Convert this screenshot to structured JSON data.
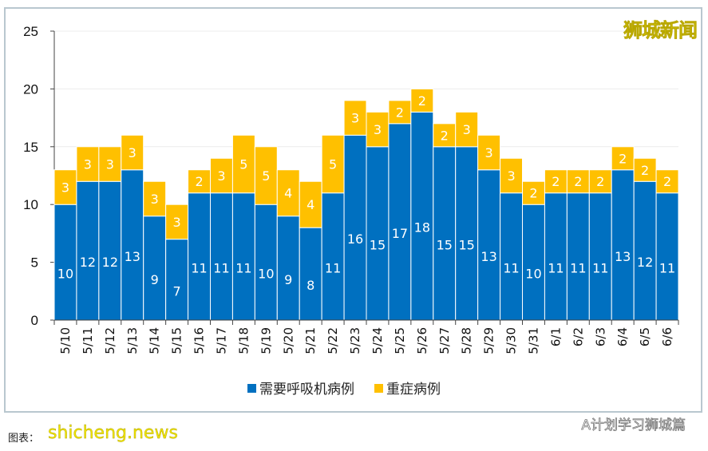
{
  "watermark_top": "狮城新闻",
  "footer_source": "图表：",
  "watermark_site": "shicheng.news",
  "watermark_wechat": "A计划学习狮城篇",
  "chart_data": {
    "type": "bar",
    "stacked": true,
    "categories": [
      "5/10",
      "5/11",
      "5/12",
      "5/13",
      "5/14",
      "5/15",
      "5/16",
      "5/17",
      "5/18",
      "5/19",
      "5/20",
      "5/21",
      "5/22",
      "5/23",
      "5/24",
      "5/25",
      "5/26",
      "5/27",
      "5/28",
      "5/29",
      "5/30",
      "5/31",
      "6/1",
      "6/2",
      "6/3",
      "6/4",
      "6/5",
      "6/6"
    ],
    "series": [
      {
        "name": "需要呼吸机病例",
        "color": "#0070c0",
        "values": [
          10,
          12,
          12,
          13,
          9,
          7,
          11,
          11,
          11,
          10,
          9,
          8,
          11,
          16,
          15,
          17,
          18,
          15,
          15,
          13,
          11,
          10,
          11,
          11,
          11,
          13,
          12,
          11
        ]
      },
      {
        "name": "重症病例",
        "color": "#ffc000",
        "values": [
          3,
          3,
          3,
          3,
          3,
          3,
          2,
          3,
          5,
          5,
          4,
          4,
          5,
          3,
          3,
          2,
          2,
          2,
          3,
          3,
          3,
          2,
          2,
          2,
          2,
          2,
          2,
          2
        ]
      }
    ],
    "yticks": [
      0,
      5,
      10,
      15,
      20,
      25
    ],
    "ylim": [
      0,
      25
    ],
    "grid": true,
    "legend": "bottom"
  }
}
